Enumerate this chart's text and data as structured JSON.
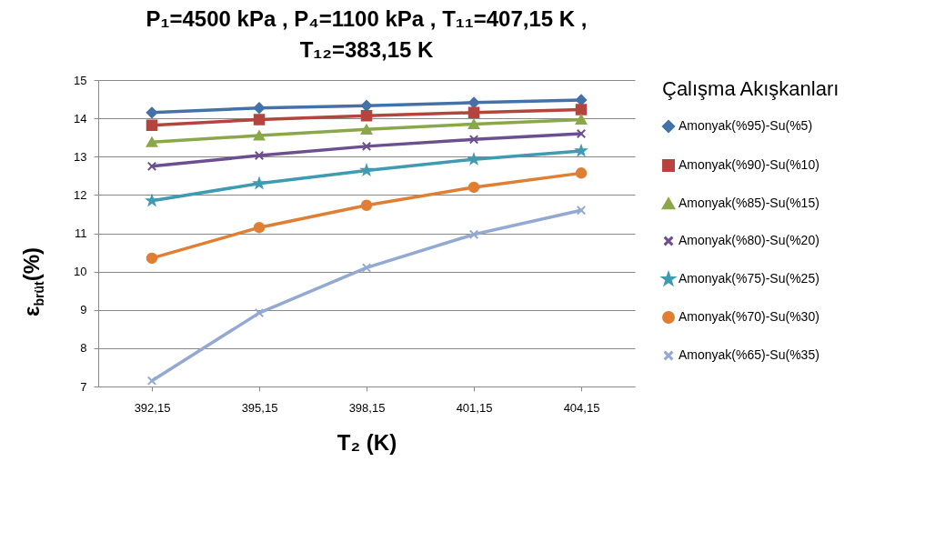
{
  "chart_data": {
    "type": "line",
    "title": "P₁=4500 kPa , P₄=1100 kPa , T₁₁=407,15 K , T₁₂=383,15 K",
    "xlabel": "T₂ (K)",
    "ylabel": "ε$_{brüt}$(%)",
    "legend_title": "Çalışma Akışkanları",
    "legend": "right",
    "grid": "y",
    "categories": [
      "392,15",
      "395,15",
      "398,15",
      "401,15",
      "404,15"
    ],
    "ylim": [
      7,
      15
    ],
    "yticks": [
      7,
      8,
      9,
      10,
      11,
      12,
      13,
      14,
      15
    ],
    "series": [
      {
        "name": "Amonyak(%95)-Su(%5)",
        "color": "#4472a8",
        "marker": "diamond",
        "values": [
          14.15,
          14.27,
          14.33,
          14.41,
          14.48
        ]
      },
      {
        "name": "Amonyak(%90)-Su(%10)",
        "color": "#b5443f",
        "marker": "square",
        "values": [
          13.82,
          13.97,
          14.07,
          14.15,
          14.23
        ]
      },
      {
        "name": "Amonyak(%85)-Su(%15)",
        "color": "#8aa84a",
        "marker": "triangle",
        "values": [
          13.38,
          13.55,
          13.71,
          13.85,
          13.97
        ]
      },
      {
        "name": "Amonyak(%80)-Su(%20)",
        "color": "#6c4f8e",
        "marker": "cross",
        "values": [
          12.75,
          13.03,
          13.27,
          13.45,
          13.6
        ]
      },
      {
        "name": "Amonyak(%75)-Su(%25)",
        "color": "#3e9bb2",
        "marker": "star",
        "values": [
          11.85,
          12.3,
          12.64,
          12.93,
          13.15
        ]
      },
      {
        "name": "Amonyak(%70)-Su(%30)",
        "color": "#e07f33",
        "marker": "circle",
        "values": [
          10.35,
          11.15,
          11.73,
          12.2,
          12.57
        ]
      },
      {
        "name": "Amonyak(%65)-Su(%35)",
        "color": "#94a9d2",
        "marker": "cross",
        "values": [
          7.15,
          8.92,
          10.1,
          10.97,
          11.6
        ]
      }
    ]
  }
}
